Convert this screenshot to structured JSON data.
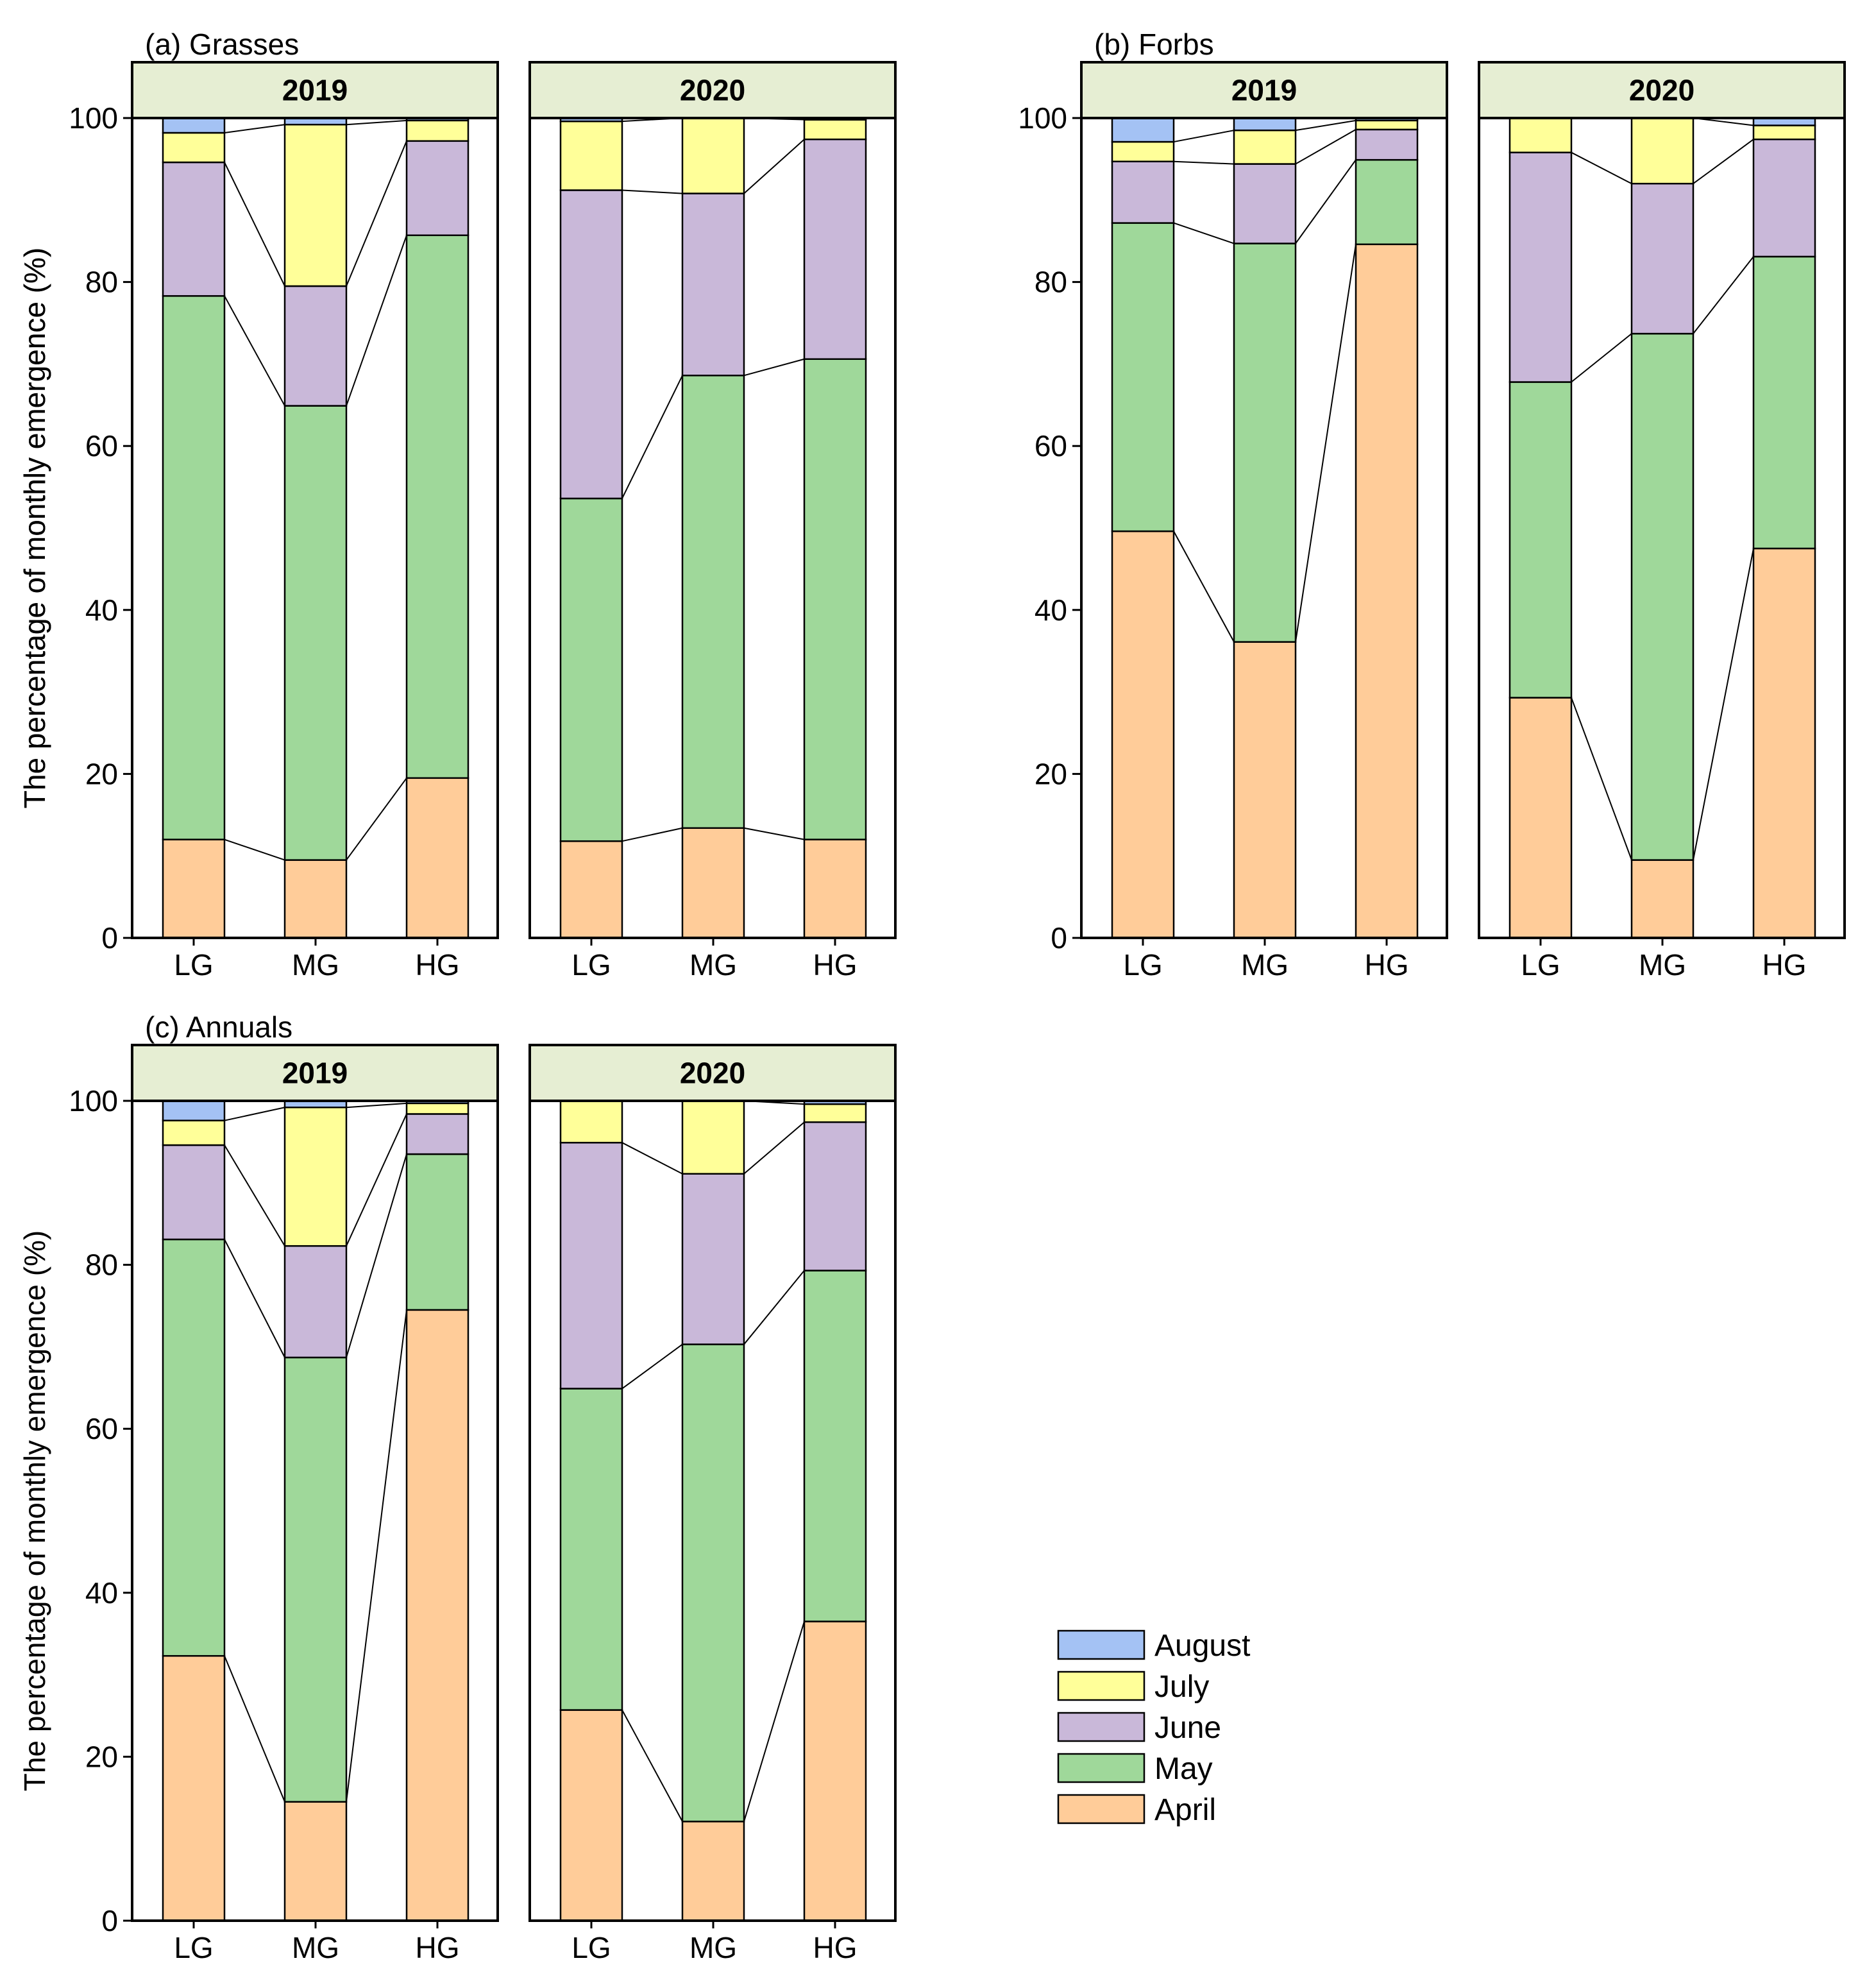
{
  "colors": {
    "August": "#a4c2f4",
    "July": "#ffff99",
    "June": "#c9b8d9",
    "May": "#9fd89a",
    "April": "#ffcc99",
    "strip": "#e6eed3"
  },
  "chart_data": {
    "type": "bar",
    "stacked": true,
    "ylabel": "The percentage of monthly emergence (%)",
    "ylim": [
      0,
      100
    ],
    "yticks": [
      "0",
      "20",
      "40",
      "60",
      "80",
      "100"
    ],
    "categories": [
      "LG",
      "MG",
      "HG"
    ],
    "years": [
      "2019",
      "2020"
    ],
    "months": [
      "April",
      "May",
      "June",
      "July",
      "August"
    ],
    "legend": {
      "position": "bottom-right",
      "entries": [
        "August",
        "July",
        "June",
        "May",
        "April"
      ]
    },
    "panels": [
      {
        "title": "(a) Grasses",
        "facets": [
          {
            "year": "2019",
            "bars": [
              {
                "category": "LG",
                "April": 12,
                "May": 66.3,
                "June": 16.3,
                "July": 3.6,
                "August": 1.8
              },
              {
                "category": "MG",
                "April": 9.5,
                "May": 55.4,
                "June": 14.6,
                "July": 19.7,
                "August": 0.8
              },
              {
                "category": "HG",
                "April": 19.5,
                "May": 66.2,
                "June": 11.5,
                "July": 2.5,
                "August": 0.3
              }
            ]
          },
          {
            "year": "2020",
            "bars": [
              {
                "category": "LG",
                "April": 11.8,
                "May": 41.8,
                "June": 37.6,
                "July": 8.4,
                "August": 0.4
              },
              {
                "category": "MG",
                "April": 13.4,
                "May": 55.2,
                "June": 22.2,
                "July": 9.2,
                "August": 0
              },
              {
                "category": "HG",
                "April": 12,
                "May": 58.6,
                "June": 26.8,
                "July": 2.4,
                "August": 0.2
              }
            ]
          }
        ]
      },
      {
        "title": "(b) Forbs",
        "facets": [
          {
            "year": "2019",
            "bars": [
              {
                "category": "LG",
                "April": 49.6,
                "May": 37.6,
                "June": 7.5,
                "July": 2.4,
                "August": 2.9
              },
              {
                "category": "MG",
                "April": 36.1,
                "May": 48.6,
                "June": 9.7,
                "July": 4.1,
                "August": 1.5
              },
              {
                "category": "HG",
                "April": 84.6,
                "May": 10.3,
                "June": 3.7,
                "July": 1.1,
                "August": 0.3
              }
            ]
          },
          {
            "year": "2020",
            "bars": [
              {
                "category": "LG",
                "April": 29.3,
                "May": 38.5,
                "June": 28,
                "July": 4.2,
                "August": 0
              },
              {
                "category": "MG",
                "April": 9.5,
                "May": 64.2,
                "June": 18.3,
                "July": 8,
                "August": 0
              },
              {
                "category": "HG",
                "April": 47.5,
                "May": 35.6,
                "June": 14.3,
                "July": 1.7,
                "August": 0.9
              }
            ]
          }
        ]
      },
      {
        "title": "(c) Annuals",
        "facets": [
          {
            "year": "2019",
            "bars": [
              {
                "category": "LG",
                "April": 32.3,
                "May": 50.8,
                "June": 11.5,
                "July": 3,
                "August": 2.4
              },
              {
                "category": "MG",
                "April": 14.5,
                "May": 54.2,
                "June": 13.6,
                "July": 16.9,
                "August": 0.8
              },
              {
                "category": "HG",
                "April": 74.5,
                "May": 19,
                "June": 4.9,
                "July": 1.3,
                "August": 0.3
              }
            ]
          },
          {
            "year": "2020",
            "bars": [
              {
                "category": "LG",
                "April": 25.7,
                "May": 39.2,
                "June": 30,
                "July": 5.1,
                "August": 0
              },
              {
                "category": "MG",
                "April": 12.1,
                "May": 58.2,
                "June": 20.8,
                "July": 8.9,
                "August": 0
              },
              {
                "category": "HG",
                "April": 36.5,
                "May": 42.8,
                "June": 18.1,
                "July": 2.2,
                "August": 0.4
              }
            ]
          }
        ]
      }
    ]
  }
}
